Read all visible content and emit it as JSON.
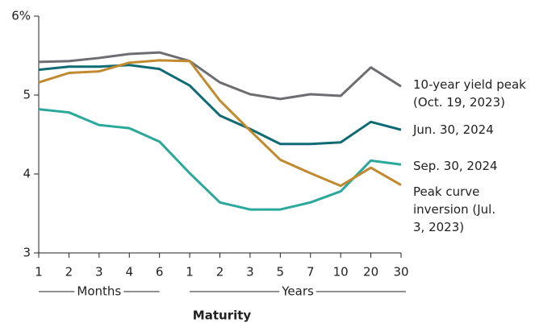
{
  "chart_data": {
    "type": "line",
    "categories": [
      "1",
      "2",
      "3",
      "4",
      "6",
      "1",
      "2",
      "3",
      "5",
      "7",
      "10",
      "20",
      "30"
    ],
    "groups": [
      "Months",
      "Years"
    ],
    "xlabel": "Maturity",
    "ylim": [
      3,
      6
    ],
    "yticks": [
      {
        "value": 6,
        "label": "6%"
      },
      5,
      4,
      3
    ],
    "grid": false,
    "series": [
      {
        "name": "10-year yield peak (Oct. 19, 2023)",
        "color": "#6d6e71",
        "values": [
          5.42,
          5.43,
          5.47,
          5.52,
          5.54,
          5.43,
          5.16,
          5.01,
          4.95,
          5.01,
          4.99,
          5.35,
          5.11
        ]
      },
      {
        "name": "Jun. 30, 2024",
        "color": "#0f6b73",
        "values": [
          5.32,
          5.36,
          5.36,
          5.38,
          5.33,
          5.12,
          4.74,
          4.57,
          4.38,
          4.38,
          4.4,
          4.66,
          4.56
        ]
      },
      {
        "name": "Sep. 30, 2024",
        "color": "#2aa89c",
        "values": [
          4.82,
          4.78,
          4.62,
          4.58,
          4.41,
          4.01,
          3.64,
          3.55,
          3.55,
          3.64,
          3.78,
          4.17,
          4.12
        ]
      },
      {
        "name": "Peak curve inversion (Jul. 3, 2023)",
        "color": "#c18a2e",
        "values": [
          5.16,
          5.28,
          5.3,
          5.41,
          5.44,
          5.43,
          4.93,
          4.55,
          4.18,
          4.01,
          3.85,
          4.08,
          3.86
        ]
      }
    ]
  }
}
